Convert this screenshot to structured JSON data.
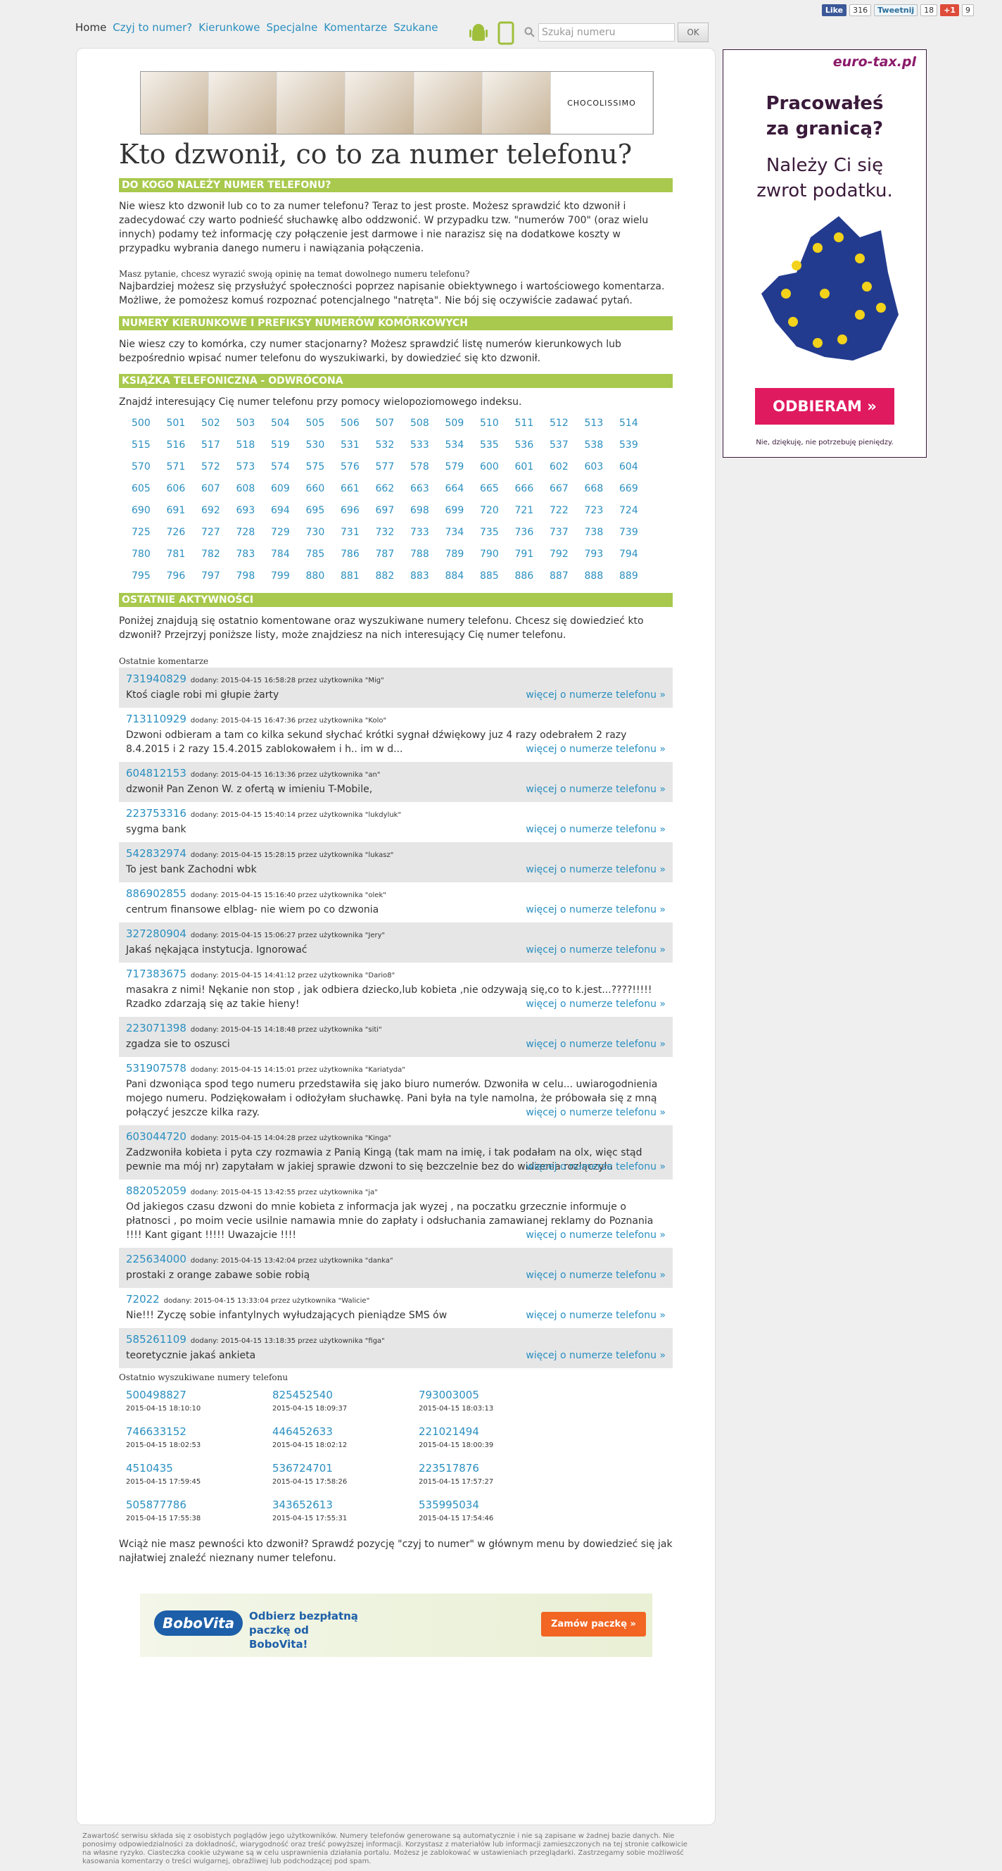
{
  "header": {
    "nav": [
      "Home",
      "Czyj to numer?",
      "Kierunkowe",
      "Specjalne",
      "Komentarze",
      "Szukane"
    ],
    "search_placeholder": "Szukaj numeru",
    "search_button": "OK",
    "social": {
      "like": "Like",
      "like_count": "316",
      "tweet": "Tweetnij",
      "tweet_count": "18",
      "plus": "+1",
      "plus_count": "9"
    }
  },
  "top_ad": {
    "brand": "CHOCOLISSIMO"
  },
  "title": "Kto dzwonił, co to za numer telefonu?",
  "sections": [
    {
      "heading": "DO KOGO NALEŻY NUMER TELEFONU?",
      "paragraphs": [
        "Nie wiesz kto dzwonił lub co to za numer telefonu? Teraz to jest proste. Możesz sprawdzić kto dzwonił i zadecydować czy warto podnieść słuchawkę albo oddzwonić. W przypadku tzw. \"numerów 700\" (oraz wielu innych) podamy też informację czy połączenie jest darmowe i nie narazisz się na dodatkowe koszty w przypadku wybrania danego numeru i nawiązania połączenia."
      ],
      "subheading": "Masz pytanie, chcesz wyrazić swoją opinię na temat dowolnego numeru telefonu?",
      "paragraphs2": [
        "Najbardziej możesz się przysłużyć społeczności poprzez napisanie obiektywnego i wartościowego komentarza. Możliwe, że pomożesz komuś rozpoznać potencjalnego \"natręta\". Nie bój się oczywiście zadawać pytań."
      ]
    },
    {
      "heading": "NUMERY KIERUNKOWE I PREFIKSY NUMERÓW KOMÓRKOWYCH",
      "paragraphs": [
        "Nie wiesz czy to komórka, czy numer stacjonarny? Możesz sprawdzić listę numerów kierunkowych lub bezpośrednio wpisać numer telefonu do wyszukiwarki, by dowiedzieć się kto dzwonił."
      ]
    },
    {
      "heading": "KSIĄŻKA TELEFONICZNA - ODWRÓCONA",
      "paragraphs": [
        "Znajdź interesujący Cię numer telefonu przy pomocy wielopoziomowego indeksu."
      ]
    }
  ],
  "index": [
    "500",
    "501",
    "502",
    "503",
    "504",
    "505",
    "506",
    "507",
    "508",
    "509",
    "510",
    "511",
    "512",
    "513",
    "514",
    "515",
    "516",
    "517",
    "518",
    "519",
    "530",
    "531",
    "532",
    "533",
    "534",
    "535",
    "536",
    "537",
    "538",
    "539",
    "570",
    "571",
    "572",
    "573",
    "574",
    "575",
    "576",
    "577",
    "578",
    "579",
    "600",
    "601",
    "602",
    "603",
    "604",
    "605",
    "606",
    "607",
    "608",
    "609",
    "660",
    "661",
    "662",
    "663",
    "664",
    "665",
    "666",
    "667",
    "668",
    "669",
    "690",
    "691",
    "692",
    "693",
    "694",
    "695",
    "696",
    "697",
    "698",
    "699",
    "720",
    "721",
    "722",
    "723",
    "724",
    "725",
    "726",
    "727",
    "728",
    "729",
    "730",
    "731",
    "732",
    "733",
    "734",
    "735",
    "736",
    "737",
    "738",
    "739",
    "780",
    "781",
    "782",
    "783",
    "784",
    "785",
    "786",
    "787",
    "788",
    "789",
    "790",
    "791",
    "792",
    "793",
    "794",
    "795",
    "796",
    "797",
    "798",
    "799",
    "880",
    "881",
    "882",
    "883",
    "884",
    "885",
    "886",
    "887",
    "888",
    "889"
  ],
  "activity": {
    "heading": "OSTATNIE AKTYWNOŚCI",
    "intro": "Poniżej znajdują się ostatnio komentowane oraz wyszukiwane numery telefonu. Chcesz się dowiedzieć kto dzwonił? Przejrzyj poniższe listy, może znajdziesz na nich interesujący Cię numer telefonu.",
    "comments_heading": "Ostatnie komentarze",
    "more_link": "więcej o numerze telefonu »",
    "comments": [
      {
        "number": "731940829",
        "meta": "dodany: 2015-04-15 16:58:28 przez użytkownika \"Mig\"",
        "text": "Ktoś ciagle robi mi głupie żarty"
      },
      {
        "number": "713110929",
        "meta": "dodany: 2015-04-15 16:47:36 przez użytkownika \"Kolo\"",
        "text": "Dzwoni odbieram a tam co kilka sekund słychać krótki sygnał dźwiękowy juz 4 razy odebrałem 2 razy 8.4.2015 i 2 razy 15.4.2015 zablokowałem i h.. im w d..."
      },
      {
        "number": "604812153",
        "meta": "dodany: 2015-04-15 16:13:36 przez użytkownika \"an\"",
        "text": "dzwonił Pan Zenon W. z ofertą w imieniu T-Mobile,"
      },
      {
        "number": "223753316",
        "meta": "dodany: 2015-04-15 15:40:14 przez użytkownika \"lukdyluk\"",
        "text": "sygma bank"
      },
      {
        "number": "542832974",
        "meta": "dodany: 2015-04-15 15:28:15 przez użytkownika \"lukasz\"",
        "text": "To jest bank Zachodni wbk"
      },
      {
        "number": "886902855",
        "meta": "dodany: 2015-04-15 15:16:40 przez użytkownika \"olek\"",
        "text": "centrum finansowe elblag- nie wiem po co dzwonia"
      },
      {
        "number": "327280904",
        "meta": "dodany: 2015-04-15 15:06:27 przez użytkownika \"Jery\"",
        "text": "Jakaś nękająca instytucja. Ignorować"
      },
      {
        "number": "717383675",
        "meta": "dodany: 2015-04-15 14:41:12 przez użytkownika \"Dario8\"",
        "text": "masakra z nimi! Nękanie non stop , jak odbiera dziecko,lub kobieta ,nie odzywają się,co to k.jest...????!!!!! Rzadko zdarzają się az takie hieny!"
      },
      {
        "number": "223071398",
        "meta": "dodany: 2015-04-15 14:18:48 przez użytkownika \"siti\"",
        "text": "zgadza sie to oszusci"
      },
      {
        "number": "531907578",
        "meta": "dodany: 2015-04-15 14:15:01 przez użytkownika \"Kariatyda\"",
        "text": "Pani dzwoniąca spod tego numeru przedstawiła się jako biuro numerów. Dzwoniła w celu... uwiarogodnienia mojego numeru. Podziękowałam i odłożyłam słuchawkę. Pani była na tyle namolna, że próbowała się z mną połączyć jeszcze kilka razy."
      },
      {
        "number": "603044720",
        "meta": "dodany: 2015-04-15 14:04:28 przez użytkownika \"Kinga\"",
        "text": "Zadzwoniła kobieta i pyta czy rozmawia z Panią Kingą (tak mam na imię, i tak podałam na olx, więc stąd pewnie ma mój nr) zapytałam w jakiej sprawie dzwoni to się bezczelnie bez do widzenia rozłączyła"
      },
      {
        "number": "882052059",
        "meta": "dodany: 2015-04-15 13:42:55 przez użytkownika \"ja\"",
        "text": "Od jakiegos czasu dzwoni do mnie kobieta z informacja jak wyzej , na poczatku grzecznie informuje o płatnosci , po moim vecie usilnie namawia mnie do zapłaty i odsłuchania zamawianej reklamy do Poznania !!!! Kant gigant !!!!! Uwazajcie !!!!"
      },
      {
        "number": "225634000",
        "meta": "dodany: 2015-04-15 13:42:04 przez użytkownika \"danka\"",
        "text": "prostaki z orange zabawe sobie robią"
      },
      {
        "number": "72022",
        "meta": "dodany: 2015-04-15 13:33:04 przez użytkownika \"Walicie\"",
        "text": "Nie!!! Zyczę sobie infantylnych wyłudzających pieniądze SMS ów"
      },
      {
        "number": "585261109",
        "meta": "dodany: 2015-04-15 13:18:35 przez użytkownika \"figa\"",
        "text": "teoretycznie jakaś ankieta"
      }
    ],
    "searched_heading": "Ostatnio wyszukiwane numery telefonu",
    "searched": [
      {
        "number": "500498827",
        "date": "2015-04-15 18:10:10"
      },
      {
        "number": "825452540",
        "date": "2015-04-15 18:09:37"
      },
      {
        "number": "793003005",
        "date": "2015-04-15 18:03:13"
      },
      {
        "number": "746633152",
        "date": "2015-04-15 18:02:53"
      },
      {
        "number": "446452633",
        "date": "2015-04-15 18:02:12"
      },
      {
        "number": "221021494",
        "date": "2015-04-15 18:00:39"
      },
      {
        "number": "4510435",
        "date": "2015-04-15 17:59:45"
      },
      {
        "number": "536724701",
        "date": "2015-04-15 17:58:26"
      },
      {
        "number": "223517876",
        "date": "2015-04-15 17:57:27"
      },
      {
        "number": "505877786",
        "date": "2015-04-15 17:55:38"
      },
      {
        "number": "343652613",
        "date": "2015-04-15 17:55:31"
      },
      {
        "number": "535995034",
        "date": "2015-04-15 17:54:46"
      }
    ],
    "outro": "Wciąż nie masz pewności kto dzwonił? Sprawdź pozycję \"czyj to numer\" w głównym menu by dowiedzieć się jak najłatwiej znaleźć nieznany numer telefonu."
  },
  "bottom_ad": {
    "brand": "BoboVita",
    "text": "Odbierz bezpłatną paczkę od BoboVita!",
    "button": "Zamów paczkę »"
  },
  "side_ad": {
    "brand": "euro-tax.pl",
    "headline": "Pracowałeś za granicą?",
    "subline": "Należy Ci się zwrot podatku.",
    "button": "ODBIERAM »",
    "decline": "Nie, dziękuję, nie potrzebuję pieniędzy."
  },
  "footer": "Zawartość serwisu składa się z osobistych poglądów jego użytkowników. Numery telefonów generowane są automatycznie i nie są zapisane w żadnej bazie danych. Nie ponosimy odpowiedzialności za dokładność, wiarygodność oraz treść powyższej informacji. Korzystasz z materiałów lub informacji zamieszczonych na tej stronie całkowicie na własne ryzyko. Ciasteczka cookie używane są w celu usprawnienia działania portalu. Możesz je zablokować w ustawieniach przeglądarki. Zastrzegamy sobie możliwość kasowania komentarzy o treści wulgarnej, obraźliwej lub podchodzącej pod spam."
}
